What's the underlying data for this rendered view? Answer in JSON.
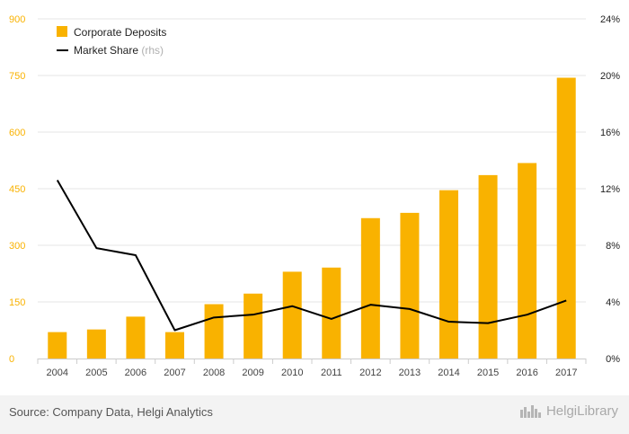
{
  "chart_data": {
    "type": "bar",
    "categories": [
      "2004",
      "2005",
      "2006",
      "2007",
      "2008",
      "2009",
      "2010",
      "2011",
      "2012",
      "2013",
      "2014",
      "2015",
      "2016",
      "2017"
    ],
    "series": [
      {
        "name": "Corporate Deposits",
        "kind": "bar",
        "axis": "left",
        "values": [
          70,
          77,
          111,
          70,
          144,
          172,
          230,
          241,
          372,
          386,
          446,
          486,
          518,
          744
        ]
      },
      {
        "name": "Market Share",
        "kind": "line",
        "axis": "right",
        "values": [
          12.6,
          7.8,
          7.3,
          2.0,
          2.9,
          3.1,
          3.7,
          2.8,
          3.8,
          3.5,
          2.6,
          2.5,
          3.1,
          4.1
        ]
      }
    ],
    "legend": [
      {
        "label": "Corporate Deposits",
        "suffix": ""
      },
      {
        "label": "Market Share",
        "suffix": "(rhs)"
      }
    ],
    "legend_position": "top-left",
    "ylim": [
      0,
      900
    ],
    "y_ticks": [
      "0",
      "150",
      "300",
      "450",
      "600",
      "750",
      "900"
    ],
    "y2lim": [
      0,
      24
    ],
    "y2_ticks": [
      "0%",
      "4%",
      "8%",
      "12%",
      "16%",
      "20%",
      "24%"
    ],
    "grid": true,
    "colors": {
      "bars": "#f9b200",
      "line": "#000000",
      "left_axis": "#f9b200",
      "grid": "#e6e6e6"
    }
  },
  "footer": {
    "source": "Source: Company Data, Helgi Analytics",
    "brand": "HelgiLibrary",
    "brand_icon": "helgi-library-logo-icon"
  }
}
